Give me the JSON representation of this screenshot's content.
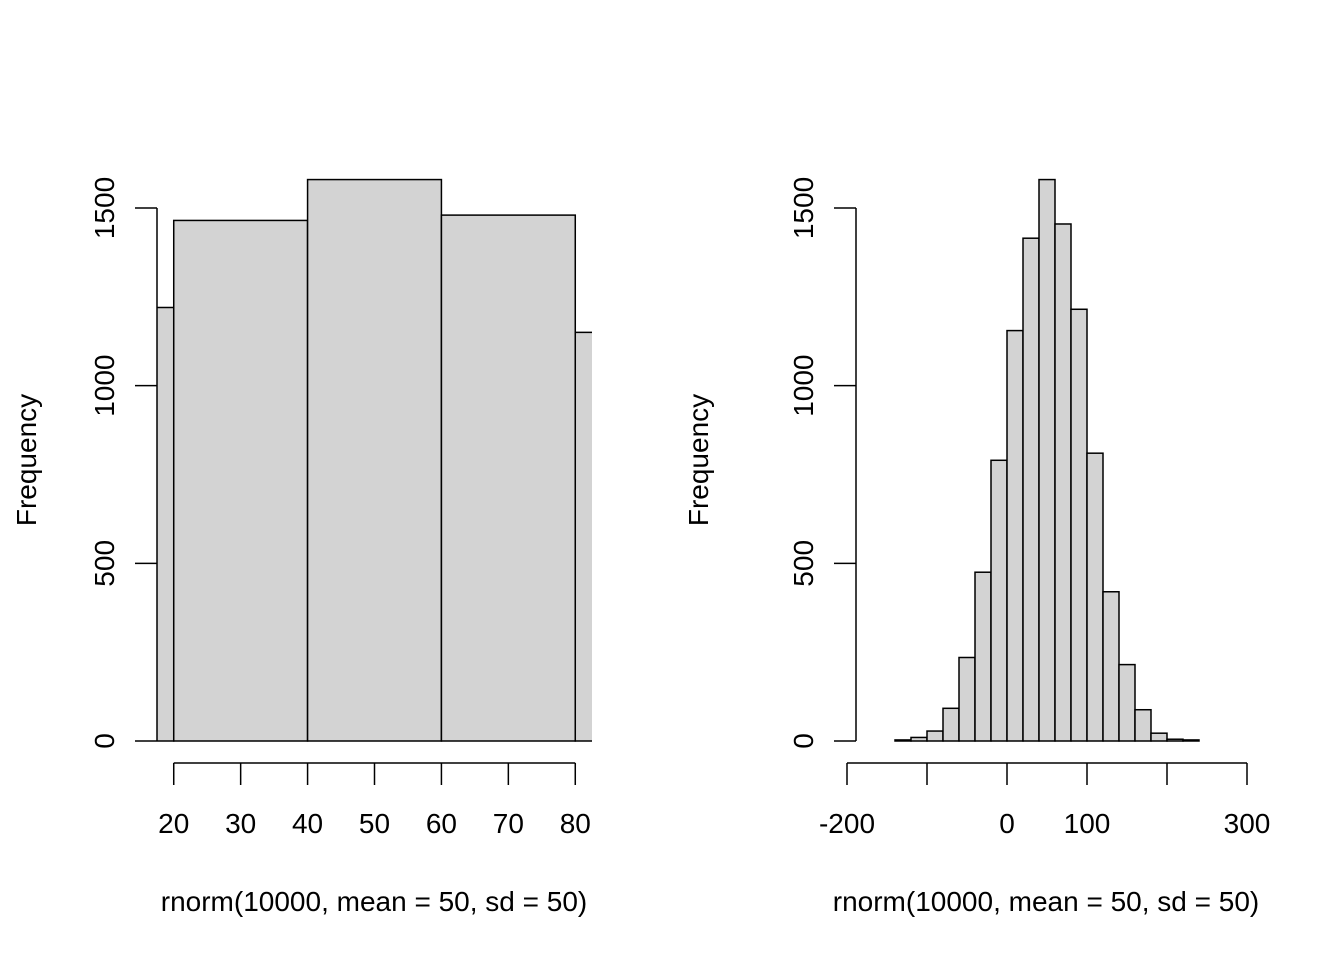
{
  "chart_data": [
    {
      "type": "bar",
      "subtype": "histogram",
      "title": "",
      "xlabel": "rnorm(10000, mean = 50, sd = 50)",
      "ylabel": "Frequency",
      "xlim": [
        17.5,
        82.5
      ],
      "ylim": [
        0,
        1500
      ],
      "x_ticks": [
        20,
        30,
        40,
        50,
        60,
        70,
        80
      ],
      "y_ticks": [
        0,
        500,
        1000,
        1500
      ],
      "grid": false,
      "bins": [
        {
          "from": 0,
          "to": 20,
          "count": 1220
        },
        {
          "from": 20,
          "to": 40,
          "count": 1465
        },
        {
          "from": 40,
          "to": 60,
          "count": 1580
        },
        {
          "from": 60,
          "to": 80,
          "count": 1480
        },
        {
          "from": 80,
          "to": 100,
          "count": 1150
        }
      ]
    },
    {
      "type": "bar",
      "subtype": "histogram",
      "title": "",
      "xlabel": "rnorm(10000, mean = 50, sd = 50)",
      "ylabel": "Frequency",
      "xlim": [
        -200,
        300
      ],
      "ylim": [
        0,
        1500
      ],
      "x_ticks": [
        -200,
        -100,
        0,
        100,
        200,
        300
      ],
      "x_tick_labels": [
        "-200",
        "",
        "0",
        "100",
        "",
        "300"
      ],
      "y_ticks": [
        0,
        500,
        1000,
        1500
      ],
      "grid": false,
      "bins": [
        {
          "from": -140,
          "to": -120,
          "count": 3
        },
        {
          "from": -120,
          "to": -100,
          "count": 10
        },
        {
          "from": -100,
          "to": -80,
          "count": 28
        },
        {
          "from": -80,
          "to": -60,
          "count": 92
        },
        {
          "from": -60,
          "to": -40,
          "count": 235
        },
        {
          "from": -40,
          "to": -20,
          "count": 475
        },
        {
          "from": -20,
          "to": 0,
          "count": 790
        },
        {
          "from": 0,
          "to": 20,
          "count": 1155
        },
        {
          "from": 20,
          "to": 40,
          "count": 1415
        },
        {
          "from": 40,
          "to": 60,
          "count": 1580
        },
        {
          "from": 60,
          "to": 80,
          "count": 1455
        },
        {
          "from": 80,
          "to": 100,
          "count": 1215
        },
        {
          "from": 100,
          "to": 120,
          "count": 810
        },
        {
          "from": 120,
          "to": 140,
          "count": 420
        },
        {
          "from": 140,
          "to": 160,
          "count": 215
        },
        {
          "from": 160,
          "to": 180,
          "count": 88
        },
        {
          "from": 180,
          "to": 200,
          "count": 22
        },
        {
          "from": 200,
          "to": 220,
          "count": 5
        },
        {
          "from": 220,
          "to": 240,
          "count": 3
        }
      ]
    }
  ]
}
